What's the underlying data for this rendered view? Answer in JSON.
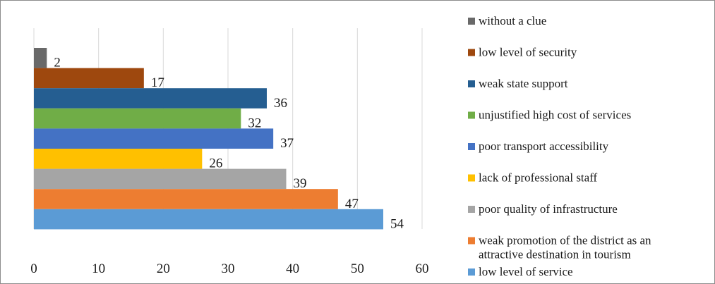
{
  "chart_data": {
    "type": "bar",
    "orientation": "horizontal",
    "title": "",
    "xlabel": "",
    "ylabel": "",
    "xlim": [
      0,
      60
    ],
    "x_ticks": [
      0,
      10,
      20,
      30,
      40,
      50,
      60
    ],
    "grid": true,
    "legend_position": "right",
    "categories": [
      "without a clue",
      "low level of security",
      "weak state support",
      "unjustified high cost of services",
      "poor transport accessibility",
      "lack of professional staff",
      "poor quality of infrastructure",
      "weak promotion of the district as an attractive destination in tourism",
      "low level of service"
    ],
    "values": [
      2,
      17,
      36,
      32,
      37,
      26,
      39,
      47,
      54
    ],
    "colors": [
      "#696969",
      "#9e480e",
      "#255e91",
      "#70ad47",
      "#4472c4",
      "#ffc000",
      "#a5a5a5",
      "#ed7d31",
      "#5b9bd5"
    ]
  }
}
